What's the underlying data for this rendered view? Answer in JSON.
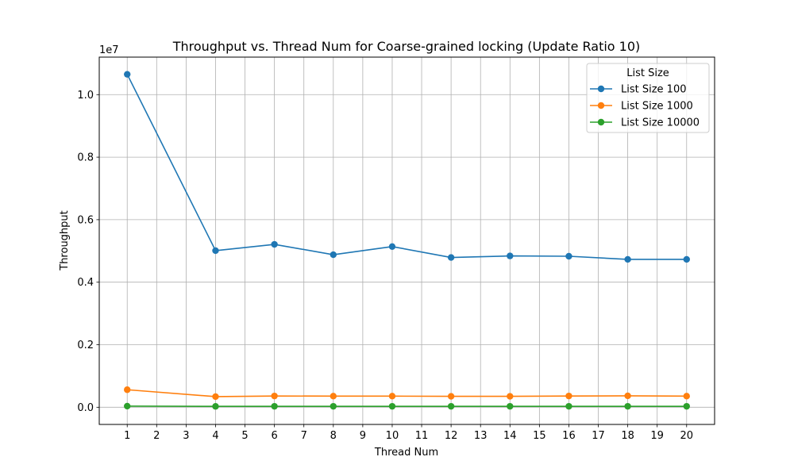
{
  "chart_data": {
    "type": "line",
    "title": "Throughput vs. Thread Num for Coarse-grained locking (Update Ratio 10)",
    "xlabel": "Thread Num",
    "ylabel": "Throughput",
    "y_offset_label": "1e7",
    "x_ticks": [
      1,
      2,
      3,
      4,
      5,
      6,
      7,
      8,
      9,
      10,
      11,
      12,
      13,
      14,
      15,
      16,
      17,
      18,
      19,
      20
    ],
    "y_ticks": [
      "0.0",
      "0.2",
      "0.4",
      "0.6",
      "0.8",
      "1.0"
    ],
    "y_tick_values": [
      0,
      2000000,
      4000000,
      6000000,
      8000000,
      10000000
    ],
    "xlim": [
      0.05,
      20.95
    ],
    "ylim": [
      -550000,
      11200000
    ],
    "grid": true,
    "legend": {
      "title": "List Size",
      "placement": "top-right"
    },
    "x": [
      1,
      4,
      6,
      8,
      10,
      12,
      14,
      16,
      18,
      20
    ],
    "series": [
      {
        "name": "List Size 100",
        "color": "#1f77b4",
        "values": [
          10650000,
          5010000,
          5210000,
          4880000,
          5140000,
          4790000,
          4840000,
          4830000,
          4730000,
          4730000
        ]
      },
      {
        "name": "List Size 1000",
        "color": "#ff7f0e",
        "values": [
          560000,
          340000,
          360000,
          355000,
          355000,
          350000,
          350000,
          360000,
          365000,
          355000
        ]
      },
      {
        "name": "List Size 10000",
        "color": "#2ca02c",
        "values": [
          35000,
          28000,
          30000,
          30000,
          30000,
          30000,
          30000,
          30000,
          30000,
          30000
        ]
      }
    ]
  }
}
